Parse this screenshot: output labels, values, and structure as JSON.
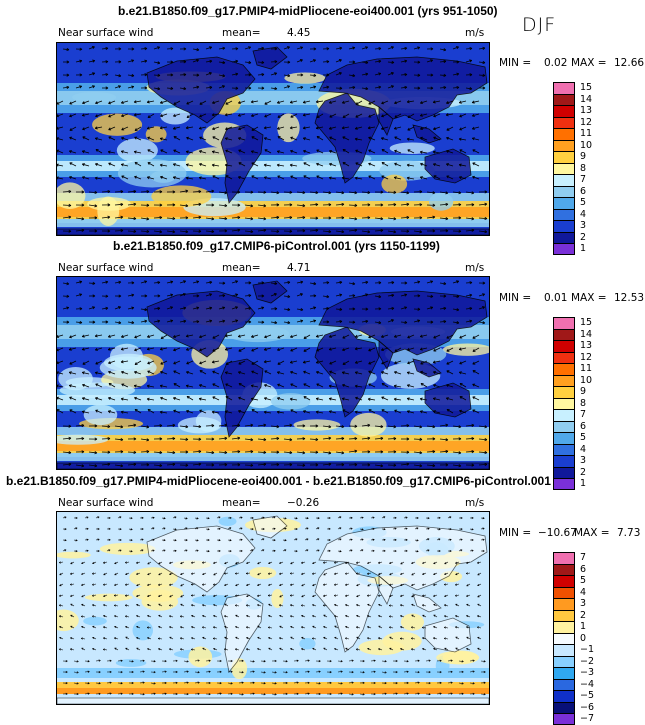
{
  "season": "DJF",
  "panels": [
    {
      "title": "b.e21.B1850.f09_g17.PMIP4-midPliocene-eoi400.001 (yrs 951-1050)",
      "variable": "Near surface wind",
      "mean_label": "mean=",
      "mean_value": "4.45",
      "units": "m/s",
      "min_label": "MIN =",
      "min_value": "0.02",
      "max_label": "MAX =",
      "max_value": "12.66",
      "levels": [
        "15",
        "14",
        "13",
        "12",
        "11",
        "10",
        "9",
        "8",
        "7",
        "6",
        "5",
        "4",
        "3",
        "2",
        "1"
      ]
    },
    {
      "title": "b.e21.B1850.f09_g17.CMIP6-piControl.001 (yrs 1150-1199)",
      "variable": "Near surface wind",
      "mean_label": "mean=",
      "mean_value": "4.71",
      "units": "m/s",
      "min_label": "MIN =",
      "min_value": "0.01",
      "max_label": "MAX =",
      "max_value": "12.53",
      "levels": [
        "15",
        "14",
        "13",
        "12",
        "11",
        "10",
        "9",
        "8",
        "7",
        "6",
        "5",
        "4",
        "3",
        "2",
        "1"
      ]
    },
    {
      "title": "b.e21.B1850.f09_g17.PMIP4-midPliocene-eoi400.001 - b.e21.B1850.f09_g17.CMIP6-piControl.001",
      "variable": "Near surface wind",
      "mean_label": "mean=",
      "mean_value": "−0.26",
      "units": "m/s",
      "min_label": "MIN =",
      "min_value": "−10.67",
      "max_label": "MAX =",
      "max_value": "7.73",
      "levels": [
        "7",
        "6",
        "5",
        "4",
        "3",
        "2",
        "1",
        "0",
        "−1",
        "−2",
        "−3",
        "−4",
        "−5",
        "−6",
        "−7"
      ]
    }
  ],
  "colors": {
    "abs_scale": [
      "#f070b0",
      "#a01818",
      "#d00000",
      "#f03010",
      "#ff7000",
      "#ffa020",
      "#ffd040",
      "#fff7a0",
      "#c8f0ff",
      "#90cdf0",
      "#50a8ea",
      "#3070e0",
      "#1a3ed0",
      "#10189a",
      "#7a30d8"
    ],
    "diff_scale": [
      "#f070b0",
      "#a01818",
      "#d00000",
      "#f05000",
      "#ff9a20",
      "#ffc840",
      "#fff2a0",
      "#f6fbff",
      "#c8e8ff",
      "#88d0ff",
      "#30a8f0",
      "#2a68e0",
      "#1030c8",
      "#081078",
      "#7a30d8"
    ],
    "land_outline": "#000000"
  }
}
